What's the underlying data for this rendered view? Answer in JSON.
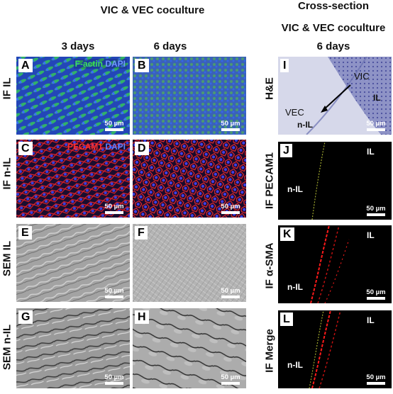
{
  "headers": {
    "coculture_left": "VIC & VEC coculture",
    "cross_section": "Cross-section",
    "coculture_right": "VIC & VEC coculture",
    "days_3": "3 days",
    "days_6_left": "6 days",
    "days_6_right": "6 days"
  },
  "row_labels": {
    "if_il": "IF IL",
    "if_nil": "IF n-IL",
    "sem_il": "SEM IL",
    "sem_nil": "SEM n-IL",
    "he": "H&E",
    "if_pecam1": "IF PECAM1",
    "if_asma": "IF α-SMA",
    "if_merge": "IF Merge"
  },
  "panels": {
    "A": {
      "letter": "A",
      "stain1": "F-actin",
      "stain2": "DAPI",
      "scale": "50 µm"
    },
    "B": {
      "letter": "B",
      "scale": "50 µm"
    },
    "C": {
      "letter": "C",
      "stain1": "PECAM1",
      "stain2": "DAPI",
      "scale": "50 µm"
    },
    "D": {
      "letter": "D",
      "scale": "50 µm"
    },
    "E": {
      "letter": "E",
      "scale": "50 µm"
    },
    "F": {
      "letter": "F",
      "scale": "50 µm"
    },
    "G": {
      "letter": "G",
      "scale": "50 µm"
    },
    "H": {
      "letter": "H",
      "scale": "50 µm"
    },
    "I": {
      "letter": "I",
      "vic": "VIC",
      "il": "IL",
      "vec": "VEC",
      "nil": "n-IL",
      "scale": "50 µm"
    },
    "J": {
      "letter": "J",
      "il": "IL",
      "nil": "n-IL",
      "scale": "50 µm"
    },
    "K": {
      "letter": "K",
      "il": "IL",
      "nil": "n-IL",
      "scale": "50 µm"
    },
    "L": {
      "letter": "L",
      "il": "IL",
      "nil": "n-IL",
      "scale": "50 µm"
    }
  },
  "colors": {
    "factin_green": "#2fd14a",
    "dapi_blue": "#2a5cff",
    "pecam_red": "#e0202a",
    "asma_red": "#ff1a1a",
    "pecam_yellow": "#c8d23a"
  }
}
